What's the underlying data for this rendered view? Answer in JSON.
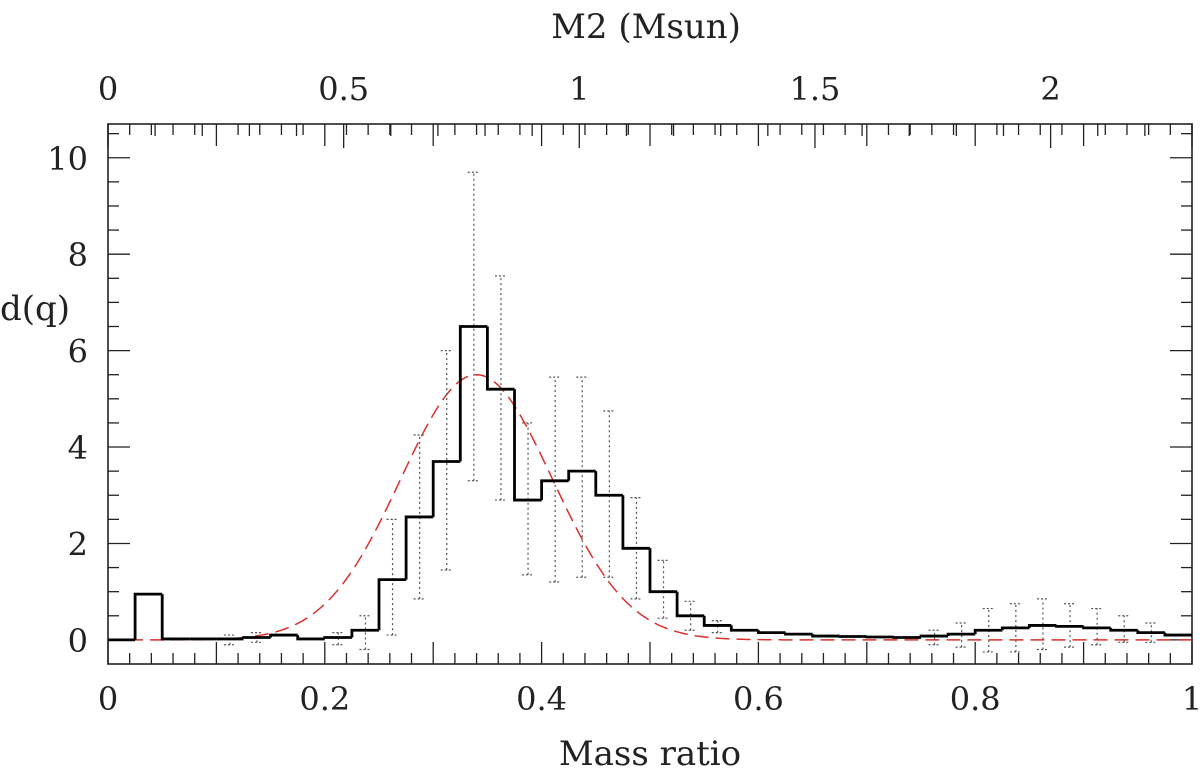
{
  "chart_data": {
    "type": "histogram",
    "title": "",
    "xlabel": "Mass ratio",
    "ylabel": "d(q)",
    "xlabel_top": "M2 (Msun)",
    "xlim": [
      0,
      1
    ],
    "ylim": [
      -0.5,
      10.7
    ],
    "top_axis_lim": [
      0,
      2.3
    ],
    "x_ticks": [
      "0",
      "0.2",
      "0.4",
      "0.6",
      "0.8",
      "1"
    ],
    "y_ticks": [
      "0",
      "2",
      "4",
      "6",
      "8",
      "10"
    ],
    "top_ticks": [
      "0",
      "0.5",
      "1",
      "1.5",
      "2"
    ],
    "x_tick_values": [
      0,
      0.2,
      0.4,
      0.6,
      0.8,
      1
    ],
    "y_tick_values": [
      0,
      2,
      4,
      6,
      8,
      10
    ],
    "top_tick_values": [
      0,
      0.5,
      1,
      1.5,
      2
    ],
    "grid": false,
    "series": [
      {
        "kind": "histogram",
        "bin_width": 0.025,
        "bin_starts": [
          0,
          0.025,
          0.05,
          0.075,
          0.1,
          0.125,
          0.15,
          0.175,
          0.2,
          0.225,
          0.25,
          0.275,
          0.3,
          0.325,
          0.35,
          0.375,
          0.4,
          0.425,
          0.45,
          0.475,
          0.5,
          0.525,
          0.55,
          0.575,
          0.6,
          0.625,
          0.65,
          0.675,
          0.7,
          0.725,
          0.75,
          0.775,
          0.8,
          0.825,
          0.85,
          0.875,
          0.9,
          0.925,
          0.95,
          0.975
        ],
        "values": [
          0.0,
          0.95,
          0.02,
          0.02,
          0.02,
          0.05,
          0.1,
          0.02,
          0.05,
          0.2,
          1.25,
          2.55,
          3.7,
          6.5,
          5.2,
          2.9,
          3.3,
          3.5,
          3.0,
          1.9,
          1.0,
          0.5,
          0.3,
          0.2,
          0.15,
          0.12,
          0.08,
          0.07,
          0.06,
          0.05,
          0.08,
          0.12,
          0.2,
          0.25,
          0.3,
          0.28,
          0.25,
          0.2,
          0.15,
          0.1
        ],
        "error_low": [
          null,
          null,
          null,
          null,
          -0.1,
          -0.05,
          null,
          null,
          -0.1,
          -0.2,
          0.1,
          0.85,
          1.45,
          3.3,
          2.9,
          1.35,
          1.2,
          1.3,
          1.3,
          0.85,
          0.45,
          0.2,
          0.15,
          null,
          null,
          null,
          null,
          null,
          null,
          null,
          -0.1,
          -0.15,
          -0.25,
          -0.25,
          -0.2,
          -0.15,
          -0.1,
          -0.05,
          -0.05,
          null
        ],
        "error_high": [
          null,
          null,
          null,
          null,
          0.1,
          0.15,
          0.2,
          null,
          0.15,
          0.5,
          2.5,
          4.25,
          6.0,
          9.7,
          7.55,
          4.5,
          5.45,
          5.45,
          4.75,
          2.95,
          1.65,
          0.8,
          0.4,
          null,
          null,
          null,
          null,
          null,
          null,
          null,
          0.2,
          0.35,
          0.65,
          0.75,
          0.85,
          0.75,
          0.65,
          0.5,
          0.35,
          null
        ]
      },
      {
        "kind": "gaussian_fit",
        "amplitude": 5.5,
        "mean": 0.34,
        "sigma": 0.07,
        "color": "#d9302c"
      }
    ]
  }
}
